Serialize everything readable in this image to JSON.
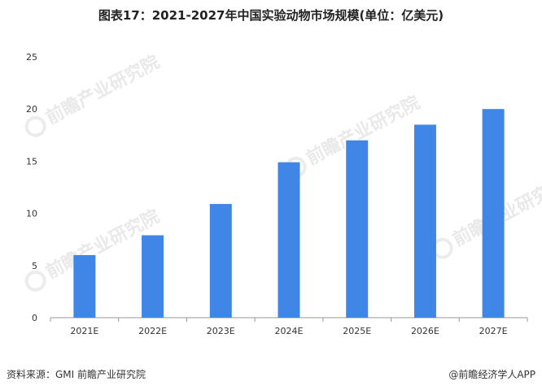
{
  "title": "图表17：2021-2027年中国实验动物市场规模(单位：亿美元)",
  "footer": {
    "source": "资料来源：GMI 前瞻产业研究院",
    "brand": "@前瞻经济学人APP"
  },
  "watermark": "前瞻产业研究院",
  "colors": {
    "bar": "#3f86e6",
    "axis": "#999999",
    "tick_text": "#333333"
  },
  "chart_data": {
    "type": "bar",
    "title": "图表17：2021-2027年中国实验动物市场规模(单位：亿美元)",
    "categories": [
      "2021E",
      "2022E",
      "2023E",
      "2024E",
      "2025E",
      "2026E",
      "2027E"
    ],
    "values": [
      6.0,
      7.9,
      10.9,
      14.9,
      17.0,
      18.5,
      20.0
    ],
    "ylim": [
      0,
      25
    ],
    "yticks": [
      0,
      5,
      10,
      15,
      20,
      25
    ],
    "grid": false,
    "xlabel": "",
    "ylabel": ""
  }
}
